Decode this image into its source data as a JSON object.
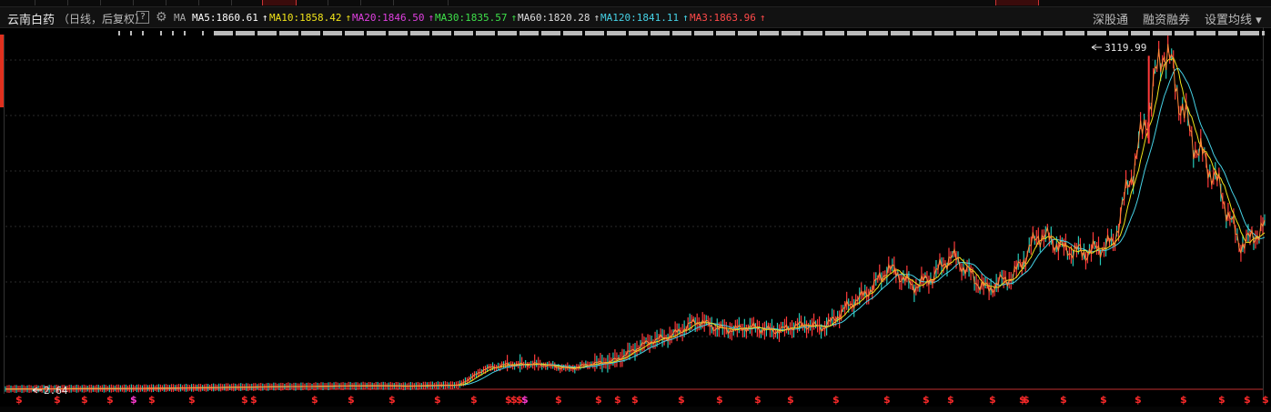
{
  "header": {
    "stock_name": "云南白药",
    "period_label": "（日线，后复权）",
    "help_label": "?",
    "ma_label": "MA",
    "right_items": [
      "深股通",
      "融资融券",
      "设置均线"
    ]
  },
  "ma_values": [
    {
      "label": "MA5:1860.61",
      "color": "#ffffff"
    },
    {
      "label": "MA10:1858.42",
      "color": "#f0e31a"
    },
    {
      "label": "MA20:1846.50",
      "color": "#e040e0"
    },
    {
      "label": "MA30:1835.57",
      "color": "#3ee04a"
    },
    {
      "label": "MA60:1820.28",
      "color": "#dddddd"
    },
    {
      "label": "MA120:1841.11",
      "color": "#46d2e6"
    },
    {
      "label": "MA3:1863.96",
      "color": "#ff4a4a"
    }
  ],
  "annotations": {
    "max_label": "3119.99",
    "min_label": "2.64"
  },
  "dividend_marker": "$",
  "chart_data": {
    "type": "line",
    "title": "",
    "xlabel": "",
    "ylabel": "",
    "series": [
      {
        "name": "",
        "x": [
          0,
          5,
          10,
          15,
          20,
          25,
          28,
          32,
          36,
          38,
          40,
          42,
          45,
          48,
          52,
          55,
          58,
          62,
          65,
          68,
          70,
          72,
          75,
          78,
          80,
          82,
          84,
          86,
          88,
          90,
          92,
          95,
          98,
          100
        ],
        "values": [
          2.64,
          5,
          8,
          14,
          22,
          28,
          32,
          30,
          40,
          180,
          240,
          230,
          200,
          260,
          480,
          620,
          560,
          570,
          600,
          850,
          1150,
          940,
          1220,
          960,
          1020,
          1500,
          1270,
          1330,
          1320,
          2350,
          3120,
          2200,
          1400,
          1480
        ]
      }
    ],
    "ylim": [
      0,
      3200
    ]
  }
}
